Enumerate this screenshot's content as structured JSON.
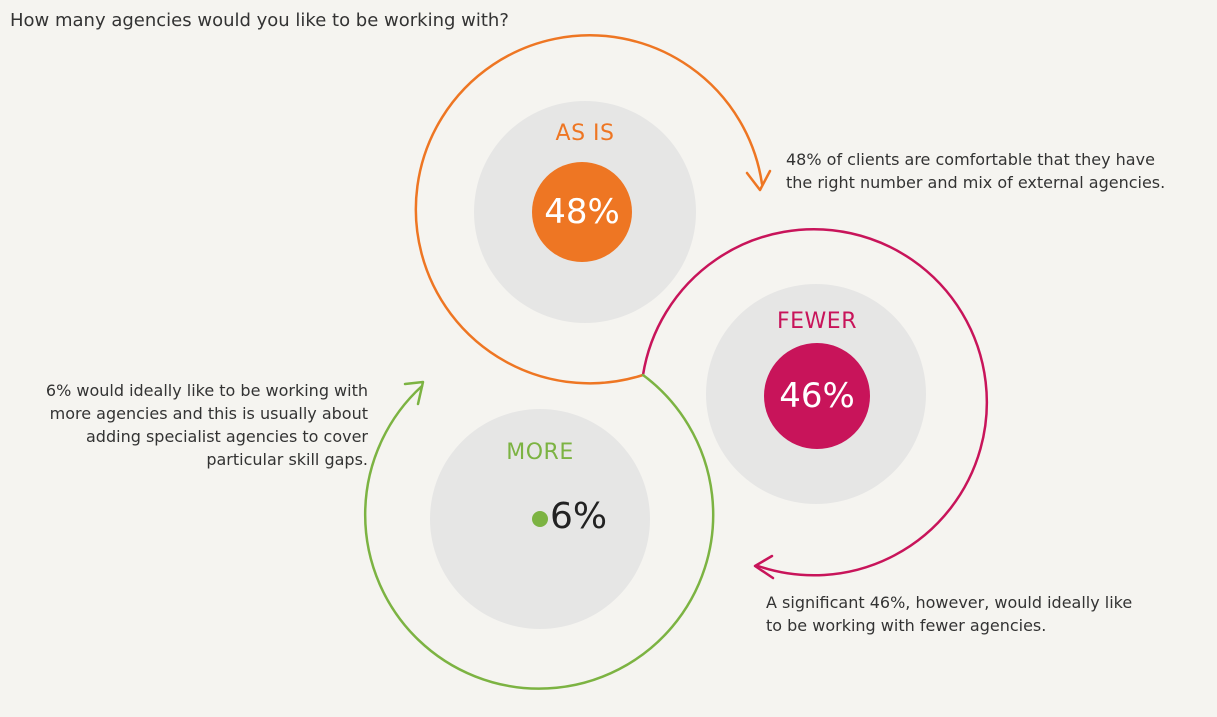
{
  "question": "How many agencies would you like to be working with?",
  "colors": {
    "background": "#f5f4f0",
    "as_is": "#ee7623",
    "fewer": "#c8145a",
    "more": "#7cb342",
    "circle_bg": "#e6e6e5"
  },
  "segments": {
    "as_is": {
      "label": "AS IS",
      "value": "48%",
      "description": [
        "48% of clients are comfortable that they have",
        "the right number and mix of external agencies."
      ]
    },
    "fewer": {
      "label": "FEWER",
      "value": "46%",
      "description": [
        "A significant 46%, however, would ideally like",
        "to be working with fewer agencies."
      ]
    },
    "more": {
      "label": "MORE",
      "value": "6%",
      "description": [
        "6% would ideally like to be working with",
        "more agencies and this is usually about",
        "adding specialist agencies to cover",
        "particular skill gaps."
      ]
    }
  }
}
